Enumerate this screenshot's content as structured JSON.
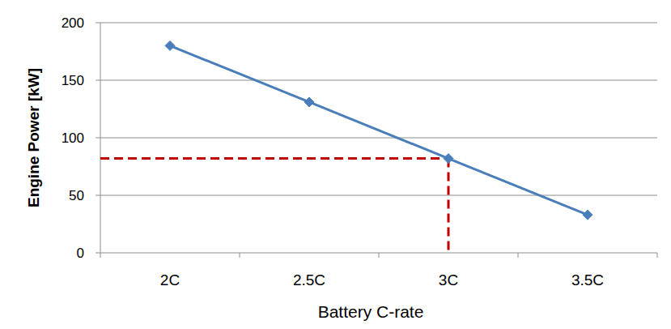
{
  "chart_data": {
    "type": "line",
    "x_label": "Battery C-rate",
    "y_label": "Engine Power [kW]",
    "categories": [
      "2C",
      "2.5C",
      "3C",
      "3.5C"
    ],
    "values": [
      180,
      131,
      82,
      33
    ],
    "color": "#4a7ebb",
    "marker": "diamond",
    "ylim": [
      0,
      200
    ],
    "yticks": [
      0,
      50,
      100,
      150,
      200
    ],
    "grid": true,
    "reference": {
      "category": "3C",
      "value": 82,
      "color": "#c00000",
      "line_style": "dashed"
    }
  }
}
